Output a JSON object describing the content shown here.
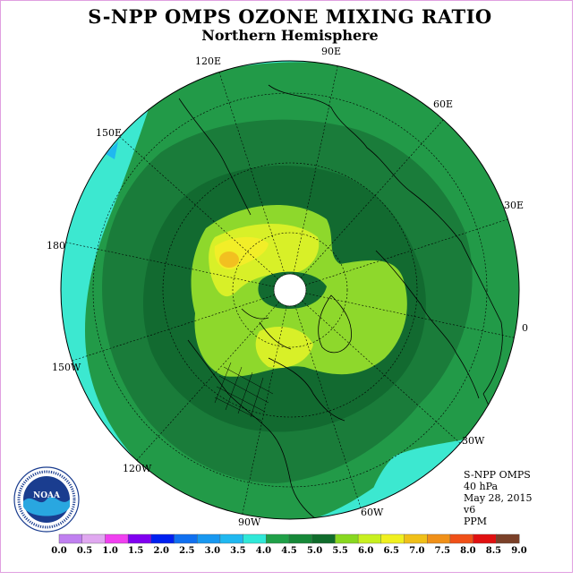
{
  "header": {
    "title": "S-NPP OMPS OZONE MIXING RATIO",
    "subtitle": "Northern Hemisphere"
  },
  "map": {
    "projection": "polar stereographic, north pole",
    "longitude_labels": [
      "90E",
      "60E",
      "30E",
      "0",
      "30W",
      "60W",
      "90W",
      "120W",
      "150W",
      "180",
      "150E",
      "120E"
    ],
    "field_colors": [
      "#3ce8d0",
      "#229a48",
      "#1a7c3a",
      "#126a30",
      "#8ed82c",
      "#d8f028",
      "#f2ee28",
      "#f2c020"
    ]
  },
  "info": {
    "instrument": "S-NPP OMPS",
    "level": "40 hPa",
    "date": "May 28, 2015",
    "version": "v6",
    "units": "PPM"
  },
  "legend": {
    "ticks": [
      "0.0",
      "0.5",
      "1.0",
      "1.5",
      "2.0",
      "2.5",
      "3.0",
      "3.5",
      "4.0",
      "4.5",
      "5.0",
      "5.5",
      "6.0",
      "6.5",
      "7.0",
      "7.5",
      "8.0",
      "8.5",
      "9.0"
    ],
    "colors": [
      "#c080f0",
      "#e0a8f0",
      "#f040f0",
      "#8000f0",
      "#0020f0",
      "#1070f0",
      "#1898f0",
      "#20b8f0",
      "#30e8d8",
      "#20a048",
      "#168838",
      "#106c2c",
      "#88d820",
      "#c8f020",
      "#f0f020",
      "#f0c018",
      "#f09018",
      "#f05018",
      "#e01010",
      "#7a4028"
    ]
  },
  "logo": {
    "text": "NOAA",
    "ring_text": "NATIONAL OCEANIC AND ATMOSPHERIC ADMINISTRATION • U.S. DEPARTMENT OF COMMERCE"
  }
}
